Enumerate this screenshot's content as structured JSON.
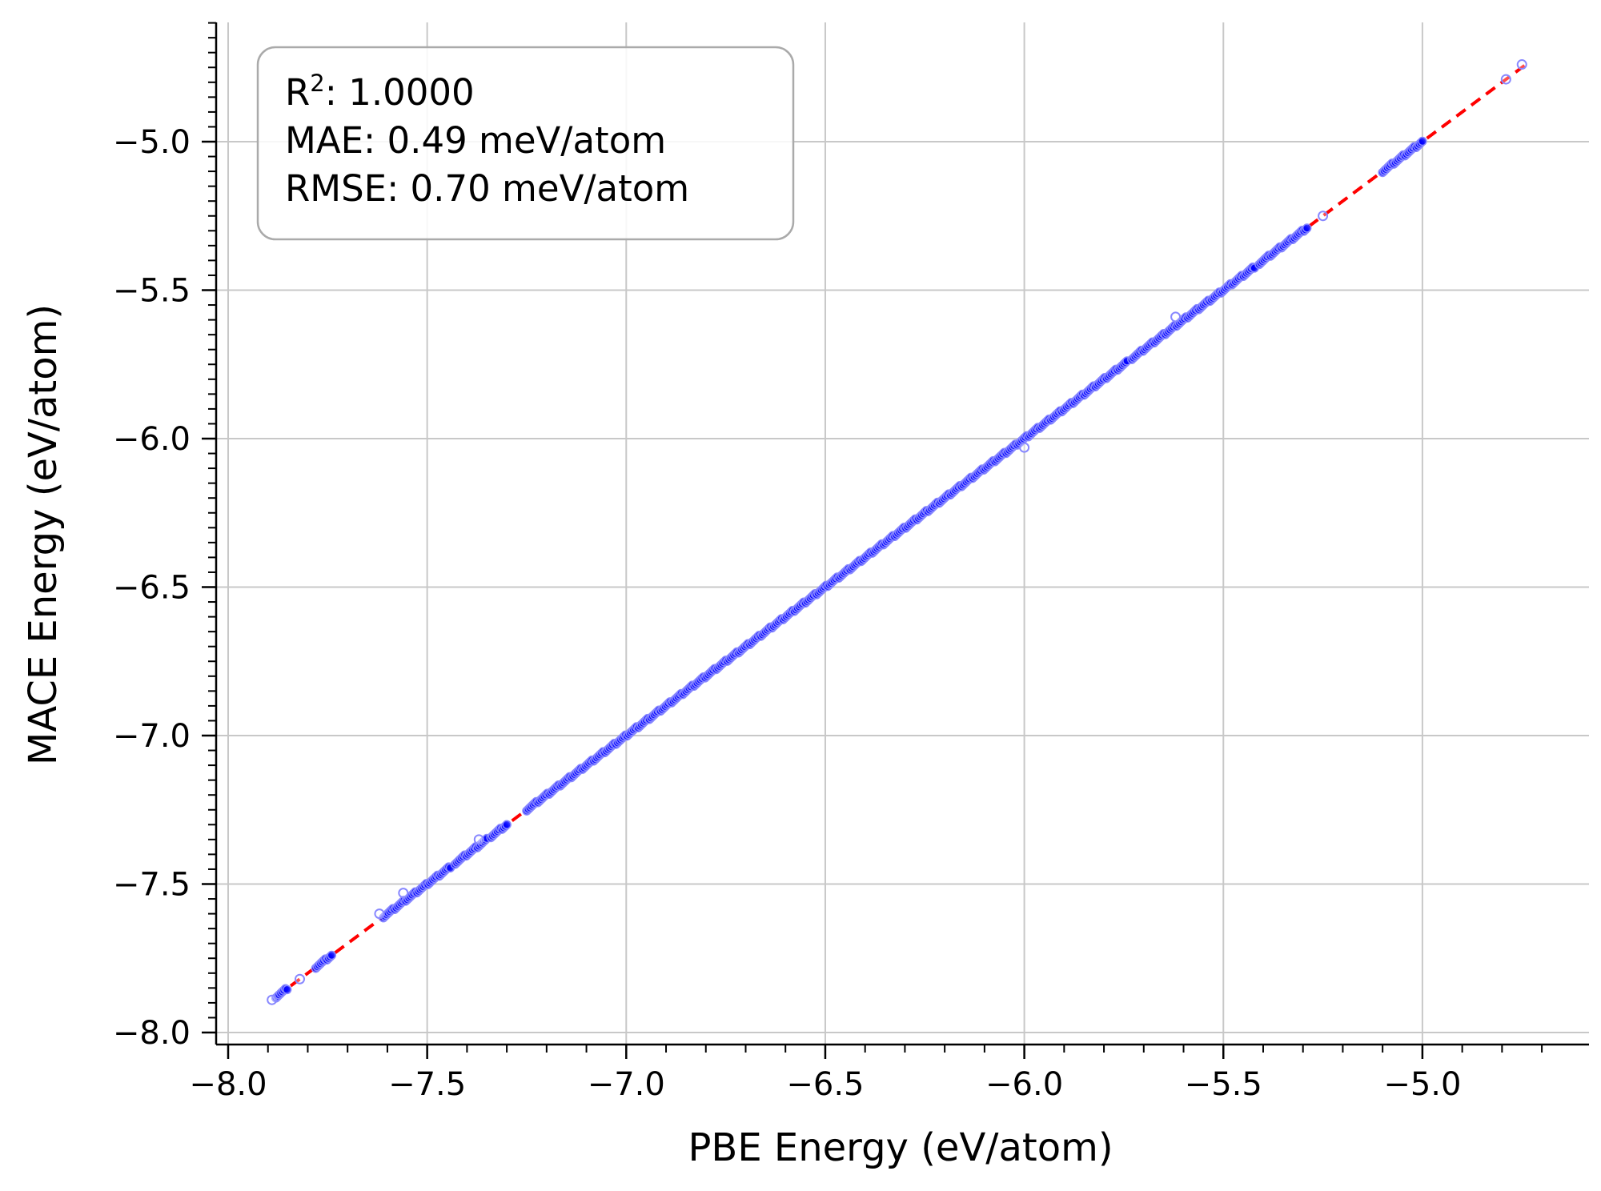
{
  "chart_data": {
    "type": "scatter",
    "xlabel": "PBE Energy (eV/atom)",
    "ylabel": "MACE Energy (eV/atom)",
    "xlim": [
      -8.03,
      -4.62
    ],
    "ylim": [
      -8.03,
      -4.59
    ],
    "xticks": [
      -8.0,
      -7.5,
      -7.0,
      -6.5,
      -6.0,
      -5.5,
      -5.0
    ],
    "yticks": [
      -8.0,
      -7.5,
      -7.0,
      -6.5,
      -6.0,
      -5.5,
      -5.0
    ],
    "xtick_labels": [
      "−8.0",
      "−7.5",
      "−7.0",
      "−6.5",
      "−6.0",
      "−5.5",
      "−5.0"
    ],
    "ytick_labels": [
      "−8.0",
      "−7.5",
      "−7.0",
      "−6.5",
      "−6.0",
      "−5.5",
      "−5.0"
    ],
    "grid": true,
    "points_color": "#0000ff",
    "points_edge_color": "#8888ff",
    "reference_line": {
      "style": "dashed",
      "color": "#ff0000",
      "from": [
        -7.88,
        -7.88
      ],
      "to": [
        -4.74,
        -4.74
      ]
    },
    "segments": [
      {
        "x_start": -7.88,
        "x_end": -7.85
      },
      {
        "x_start": -7.78,
        "x_end": -7.74
      },
      {
        "x_start": -7.61,
        "x_end": -7.44
      },
      {
        "x_start": -7.43,
        "x_end": -7.35
      },
      {
        "x_start": -7.34,
        "x_end": -7.3
      },
      {
        "x_start": -7.25,
        "x_end": -5.74
      },
      {
        "x_start": -5.73,
        "x_end": -5.42
      },
      {
        "x_start": -5.41,
        "x_end": -5.29
      },
      {
        "x_start": -5.1,
        "x_end": -5.0
      }
    ],
    "outliers": [
      {
        "x": -6.0,
        "y": -6.03
      },
      {
        "x": -5.62,
        "y": -5.59
      },
      {
        "x": -7.56,
        "y": -7.53
      },
      {
        "x": -5.25,
        "y": -5.25
      },
      {
        "x": -4.79,
        "y": -4.79
      },
      {
        "x": -4.75,
        "y": -4.74
      },
      {
        "x": -7.82,
        "y": -7.82
      },
      {
        "x": -7.89,
        "y": -7.89
      },
      {
        "x": -7.62,
        "y": -7.6
      },
      {
        "x": -7.37,
        "y": -7.35
      }
    ],
    "stats": {
      "r2_label": "R",
      "r2_sup": "2",
      "r2_value": ": 1.0000",
      "mae": "MAE: 0.49 meV/atom",
      "rmse": "RMSE: 0.70 meV/atom"
    }
  }
}
